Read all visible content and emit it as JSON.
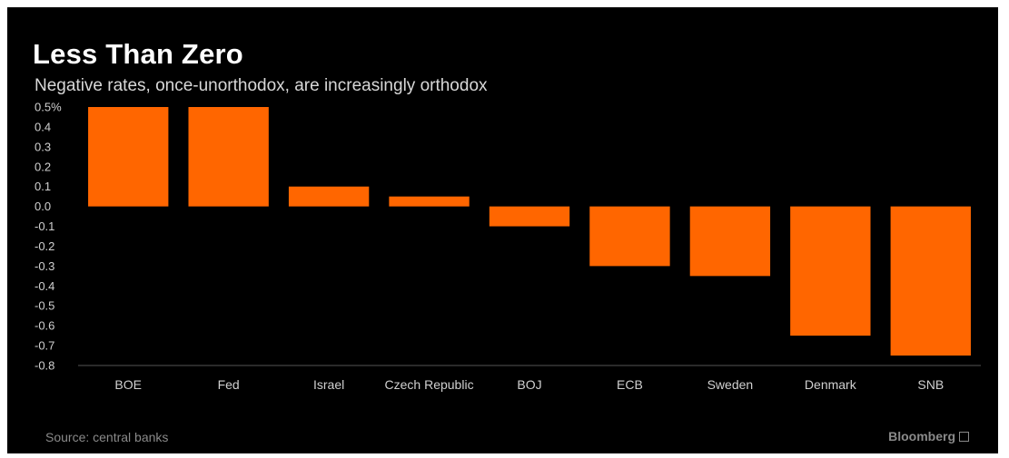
{
  "header": {
    "title": "Less Than Zero",
    "subtitle": "Negative rates, once-unorthodox, are increasingly orthodox"
  },
  "footer": {
    "source": "Source: central banks",
    "brand": "Bloomberg"
  },
  "colors": {
    "background": "#000000",
    "bar": "#ff6600",
    "text": "#ffffff",
    "muted": "#8a8a8a"
  },
  "chart_data": {
    "type": "bar",
    "title": "Less Than Zero",
    "subtitle": "Negative rates, once-unorthodox, are increasingly orthodox",
    "categories": [
      "BOE",
      "Fed",
      "Israel",
      "Czech Republic",
      "BOJ",
      "ECB",
      "Sweden",
      "Denmark",
      "SNB"
    ],
    "values": [
      0.5,
      0.5,
      0.1,
      0.05,
      -0.1,
      -0.3,
      -0.35,
      -0.65,
      -0.75
    ],
    "ylim": [
      -0.8,
      0.5
    ],
    "yticks": [
      "0.5%",
      "0.4",
      "0.3",
      "0.2",
      "0.1",
      "0.0",
      "-0.1",
      "-0.2",
      "-0.3",
      "-0.4",
      "-0.5",
      "-0.6",
      "-0.7",
      "-0.8"
    ],
    "ytick_values": [
      0.5,
      0.4,
      0.3,
      0.2,
      0.1,
      0.0,
      -0.1,
      -0.2,
      -0.3,
      -0.4,
      -0.5,
      -0.6,
      -0.7,
      -0.8
    ],
    "xlabel": "",
    "ylabel": "",
    "grid": false,
    "legend": "none"
  }
}
